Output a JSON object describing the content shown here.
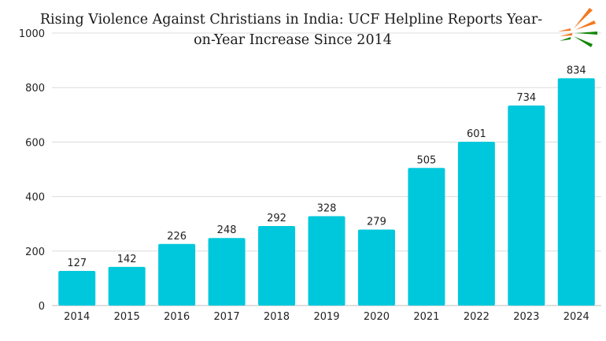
{
  "chart_data": {
    "type": "bar",
    "title": "Rising Violence Against Christians in India: UCF Helpline Reports Year-on-Year Increase Since 2014",
    "title_lines": [
      "Rising Violence Against Christians in India: UCF Helpline Reports Year-",
      "on-Year Increase Since 2014"
    ],
    "xlabel": "",
    "ylabel": "",
    "categories": [
      "2014",
      "2015",
      "2016",
      "2017",
      "2018",
      "2019",
      "2020",
      "2021",
      "2022",
      "2023",
      "2024"
    ],
    "values": [
      127,
      142,
      226,
      248,
      292,
      328,
      279,
      505,
      601,
      734,
      834
    ],
    "ylim": [
      0,
      1000
    ],
    "yticks": [
      0,
      200,
      400,
      600,
      800,
      1000
    ],
    "grid": true,
    "legend": "none",
    "bar_color": "#00c8dc"
  },
  "logo": {
    "icon": "tricolor-rays-logo",
    "colors": [
      "#f47920",
      "#ffffff",
      "#138808"
    ]
  }
}
